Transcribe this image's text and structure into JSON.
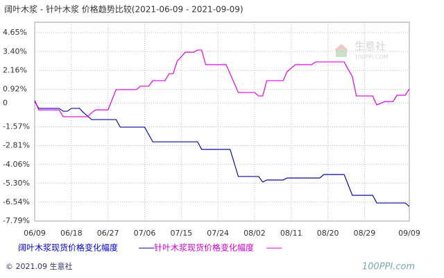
{
  "chart_data": {
    "type": "line",
    "title": "阔叶木浆 - 针叶木浆 价格趋势比较(2021-06-09 - 2021-09-09)",
    "xlim": [
      "06/09",
      "09/09"
    ],
    "xticks": [
      "06/09",
      "06/18",
      "06/27",
      "07/06",
      "07/15",
      "07/24",
      "08/02",
      "08/11",
      "08/20",
      "08/29",
      "09/09"
    ],
    "ylim": [
      -7.79,
      5.34
    ],
    "yticks": [
      {
        "value": 4.65,
        "label": "4.65%"
      },
      {
        "value": 3.4,
        "label": "3.40%"
      },
      {
        "value": 2.16,
        "label": "2.16%"
      },
      {
        "value": 0.92,
        "label": "0.92%"
      },
      0,
      {
        "value": -1.57,
        "label": "-1.57%"
      },
      {
        "value": -2.81,
        "label": "-2.81%"
      },
      {
        "value": -4.06,
        "label": "-4.06%"
      },
      {
        "value": -5.3,
        "label": "-5.30%"
      },
      {
        "value": -6.54,
        "label": "-6.54%"
      },
      {
        "value": -7.79,
        "label": "-7.79%"
      }
    ],
    "grid": true,
    "series": [
      {
        "name": "阔叶木浆现货价格变化幅度",
        "color": "#0a0a9e",
        "x": [
          "06/09",
          "06/10",
          "06/15",
          "06/16",
          "06/17",
          "06/18",
          "06/20",
          "06/21",
          "06/23",
          "06/29",
          "06/30",
          "07/06",
          "07/08",
          "07/19",
          "07/20",
          "07/27",
          "07/29",
          "08/03",
          "08/04",
          "08/05",
          "08/09",
          "08/10",
          "08/18",
          "08/19",
          "08/24",
          "08/26",
          "08/31",
          "09/01",
          "09/08",
          "09/09"
        ],
        "values": [
          0.1,
          -0.35,
          -0.35,
          -0.54,
          -0.54,
          -0.35,
          -0.35,
          -0.63,
          -1.09,
          -1.09,
          -1.59,
          -1.59,
          -2.56,
          -2.56,
          -3.06,
          -3.06,
          -4.85,
          -4.85,
          -5.22,
          -5.08,
          -5.08,
          -4.95,
          -4.95,
          -4.72,
          -4.72,
          -6.09,
          -6.09,
          -6.6,
          -6.6,
          -6.83
        ]
      },
      {
        "name": "针叶木浆现货价格变化幅度",
        "color": "#e000e0",
        "x": [
          "06/09",
          "06/10",
          "06/15",
          "06/16",
          "06/22",
          "06/23",
          "06/24",
          "06/27",
          "06/29",
          "07/04",
          "07/05",
          "07/07",
          "07/08",
          "07/11",
          "07/12",
          "07/13",
          "07/14",
          "07/16",
          "07/18",
          "07/19",
          "07/20",
          "07/21",
          "07/26",
          "07/27",
          "07/29",
          "08/02",
          "08/03",
          "08/04",
          "08/05",
          "08/09",
          "08/10",
          "08/12",
          "08/16",
          "08/17",
          "08/24",
          "08/25",
          "08/26",
          "08/27",
          "08/31",
          "09/01",
          "09/03",
          "09/05",
          "09/06",
          "09/08",
          "09/09"
        ],
        "values": [
          0.19,
          -0.45,
          -0.45,
          -0.9,
          -0.9,
          -0.63,
          -0.45,
          -0.45,
          0.89,
          0.89,
          1.12,
          1.12,
          1.48,
          1.48,
          1.94,
          1.94,
          2.77,
          3.36,
          3.36,
          3.5,
          3.5,
          2.54,
          2.54,
          1.94,
          0.7,
          0.7,
          0.47,
          0.47,
          1.48,
          1.48,
          2.08,
          2.54,
          2.54,
          2.72,
          2.72,
          2.22,
          1.76,
          0.47,
          0.47,
          -0.12,
          0.1,
          0.1,
          0.52,
          0.52,
          0.93
        ]
      }
    ],
    "watermark": "生意社",
    "watermark_sub": "100PPI.COM",
    "footer": "© 2021.09 生意社",
    "footer_logo": "100PPI.com"
  }
}
